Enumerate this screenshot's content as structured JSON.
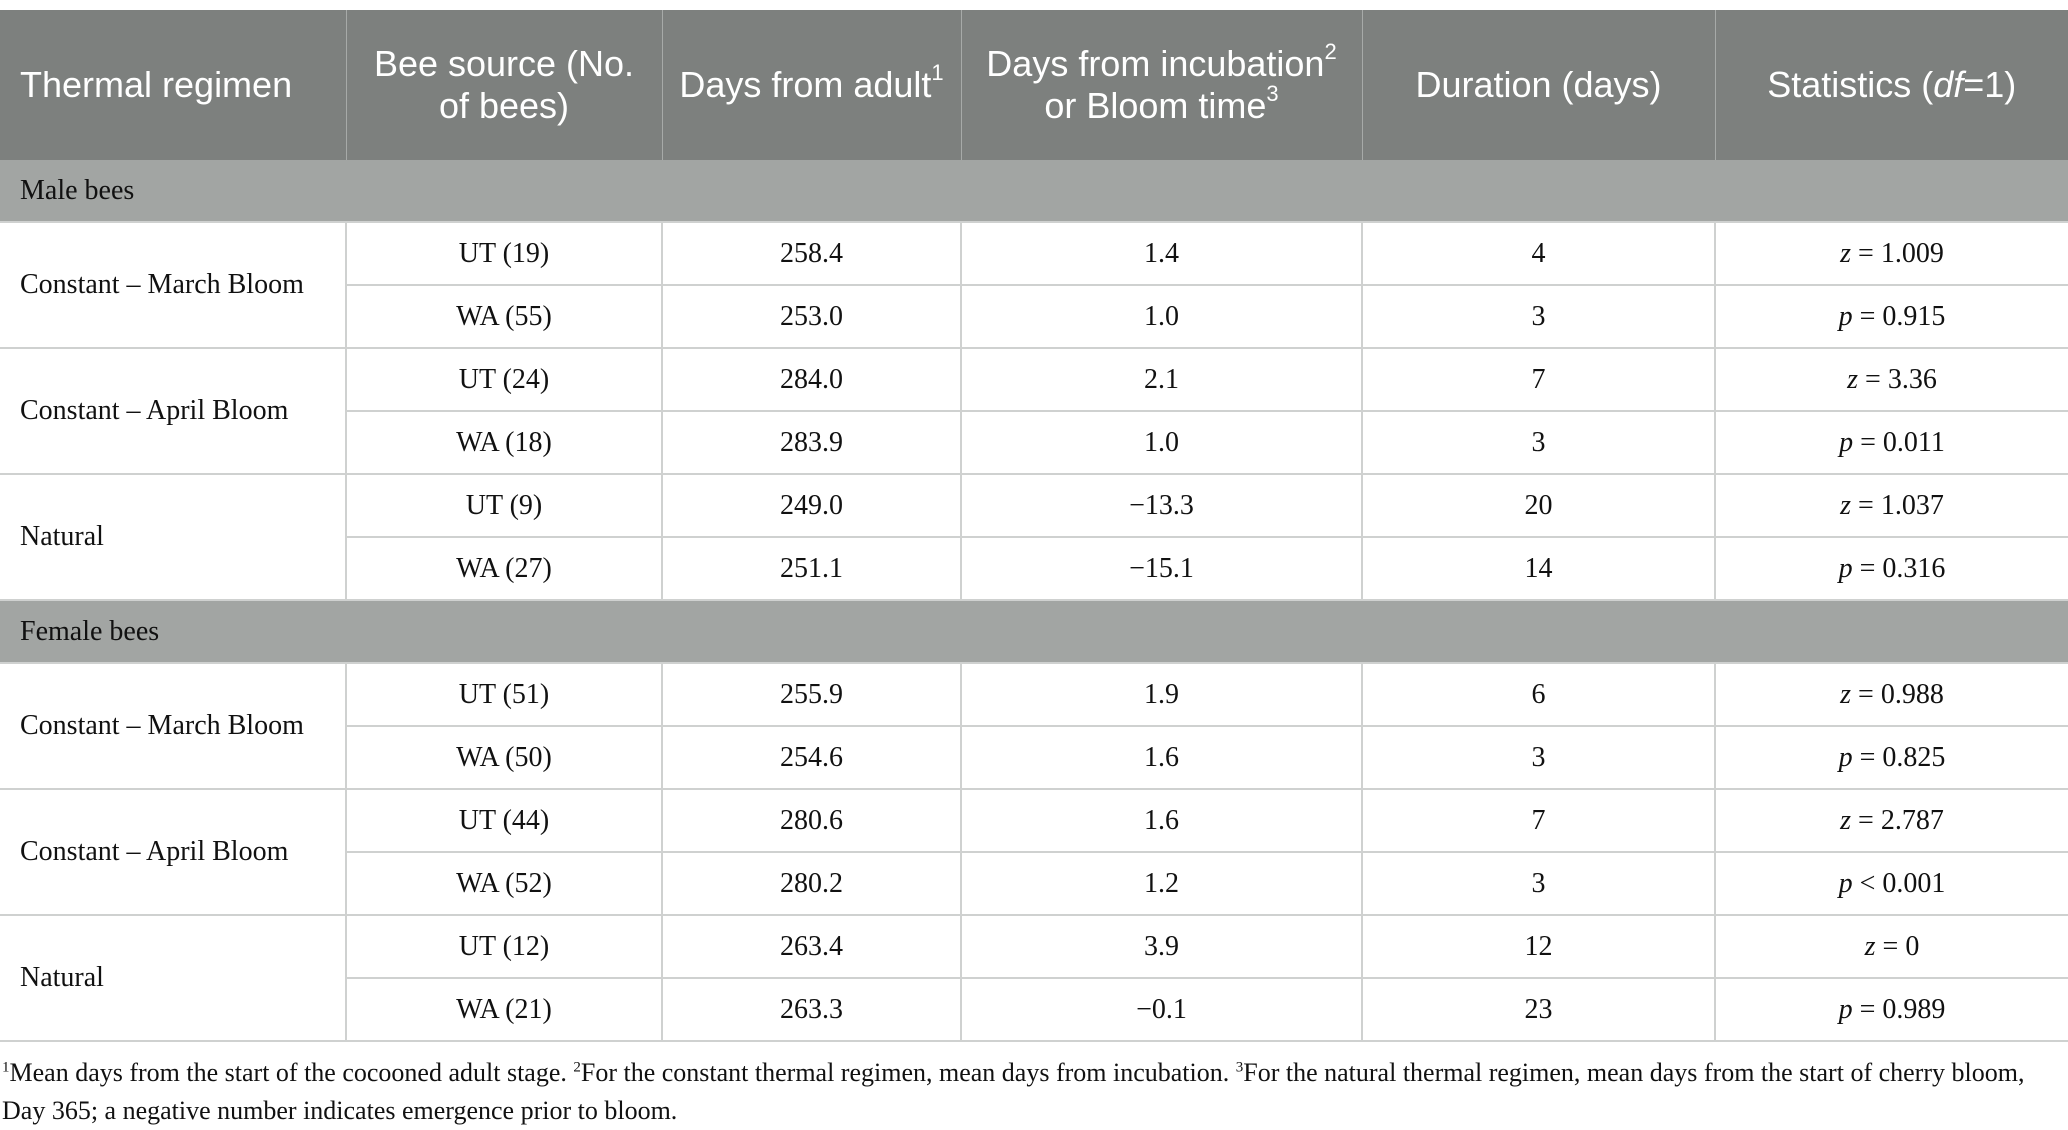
{
  "table": {
    "headers": {
      "regimen": "Thermal regimen",
      "source": "Bee source (No. of bees)",
      "days_adult": "Days from adult",
      "days_adult_sup": "1",
      "days_incub_pre": "Days from incubation",
      "days_incub_sup1": "2",
      "days_incub_mid": " or Bloom time",
      "days_incub_sup2": "3",
      "duration": "Duration (days)",
      "stats_pre": "Statistics (",
      "stats_df": "df",
      "stats_post": "=1)"
    },
    "sections": [
      {
        "label": "Male bees",
        "groups": [
          {
            "regimen": "Constant – March Bloom",
            "rows": [
              {
                "source": "UT (19)",
                "days_adult": "258.4",
                "days_incub": "1.4",
                "duration": "4",
                "stat_sym": "z",
                "stat_rest": " = 1.009"
              },
              {
                "source": "WA (55)",
                "days_adult": "253.0",
                "days_incub": "1.0",
                "duration": "3",
                "stat_sym": "p",
                "stat_rest": " = 0.915"
              }
            ]
          },
          {
            "regimen": "Constant – April Bloom",
            "rows": [
              {
                "source": "UT (24)",
                "days_adult": "284.0",
                "days_incub": "2.1",
                "duration": "7",
                "stat_sym": "z",
                "stat_rest": " = 3.36"
              },
              {
                "source": "WA (18)",
                "days_adult": "283.9",
                "days_incub": "1.0",
                "duration": "3",
                "stat_sym": "p",
                "stat_rest": " = 0.011"
              }
            ]
          },
          {
            "regimen": "Natural",
            "rows": [
              {
                "source": "UT (9)",
                "days_adult": "249.0",
                "days_incub": "−13.3",
                "duration": "20",
                "stat_sym": "z",
                "stat_rest": " = 1.037"
              },
              {
                "source": "WA (27)",
                "days_adult": "251.1",
                "days_incub": "−15.1",
                "duration": "14",
                "stat_sym": "p",
                "stat_rest": " = 0.316"
              }
            ]
          }
        ]
      },
      {
        "label": "Female bees",
        "groups": [
          {
            "regimen": "Constant – March Bloom",
            "rows": [
              {
                "source": "UT (51)",
                "days_adult": "255.9",
                "days_incub": "1.9",
                "duration": "6",
                "stat_sym": "z",
                "stat_rest": " = 0.988"
              },
              {
                "source": "WA (50)",
                "days_adult": "254.6",
                "days_incub": "1.6",
                "duration": "3",
                "stat_sym": "p",
                "stat_rest": " = 0.825"
              }
            ]
          },
          {
            "regimen": "Constant – April Bloom",
            "rows": [
              {
                "source": "UT (44)",
                "days_adult": "280.6",
                "days_incub": "1.6",
                "duration": "7",
                "stat_sym": "z",
                "stat_rest": " = 2.787"
              },
              {
                "source": "WA (52)",
                "days_adult": "280.2",
                "days_incub": "1.2",
                "duration": "3",
                "stat_sym": "p",
                "stat_rest": " < 0.001"
              }
            ]
          },
          {
            "regimen": "Natural",
            "rows": [
              {
                "source": "UT (12)",
                "days_adult": "263.4",
                "days_incub": "3.9",
                "duration": "12",
                "stat_sym": "z",
                "stat_rest": " = 0"
              },
              {
                "source": "WA (21)",
                "days_adult": "263.3",
                "days_incub": "−0.1",
                "duration": "23",
                "stat_sym": "p",
                "stat_rest": " = 0.989"
              }
            ]
          }
        ]
      }
    ]
  },
  "footnotes": {
    "n1_num": "1",
    "n1": "Mean days from the start of the cocooned adult stage. ",
    "n2_num": "2",
    "n2": "For the constant thermal regimen, mean days from incubation. ",
    "n3_num": "3",
    "n3": "For the natural thermal regimen, mean days from the start of cherry bloom, Day 365; a negative number indicates emergence prior to bloom."
  }
}
